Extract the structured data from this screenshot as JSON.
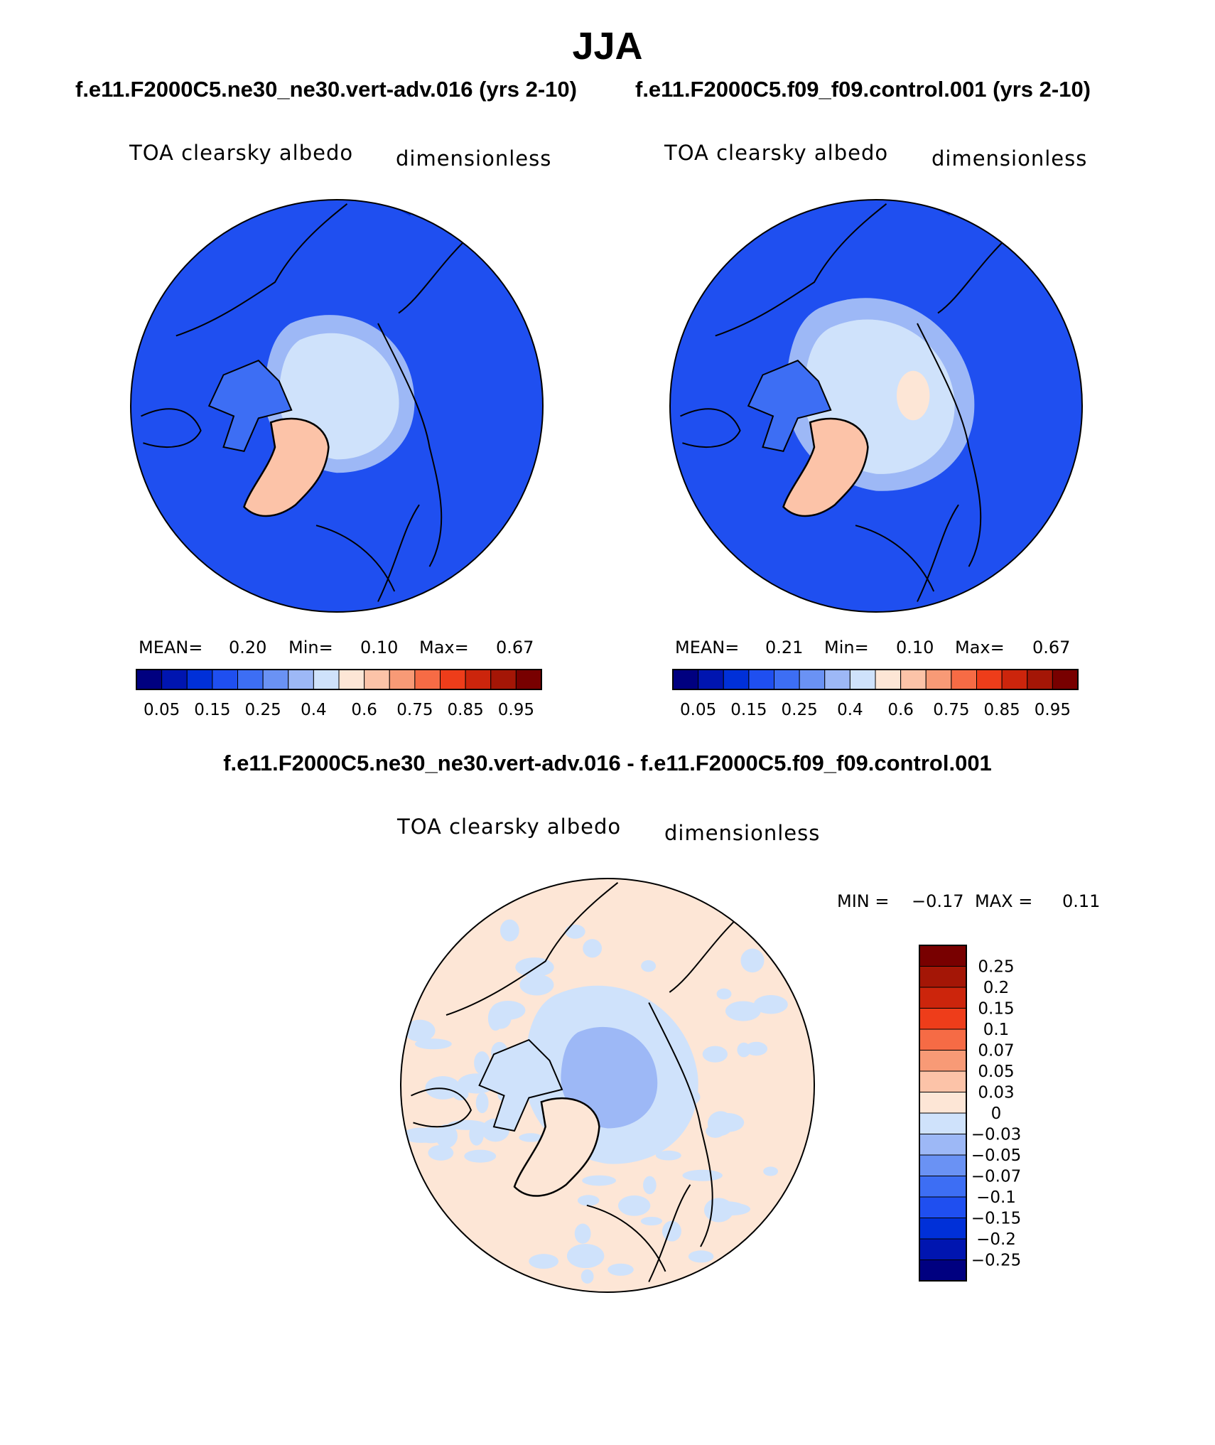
{
  "title": "JJA",
  "colors": {
    "scale": [
      "#000080",
      "#0015b0",
      "#0030d8",
      "#1f4ff0",
      "#3d6ef4",
      "#6a92f4",
      "#9db8f6",
      "#cfe2fb",
      "#fde6d6",
      "#fcc3a8",
      "#f89a76",
      "#f66b45",
      "#ee3d1a",
      "#cc250c",
      "#a41606",
      "#780000"
    ],
    "ocean": "#1f4ff0",
    "ocean_far": "#0030d8",
    "land_mid": "#3d6ef4",
    "ice_light": "#cfe2fb",
    "ice_mid": "#9db8f6",
    "greenland": "#fcc3a8",
    "diff_pos": "#fde6d6",
    "diff_neg": "#cfe2fb",
    "diff_neg2": "#9db8f6"
  },
  "chart_data": [
    {
      "type": "heatmap",
      "projection": "north polar stereographic",
      "case_title": "f.e11.F2000C5.ne30_ne30.vert-adv.016 (yrs 2-10)",
      "variable": "TOA clearsky albedo",
      "units": "dimensionless",
      "stats": {
        "mean_label": "MEAN=",
        "mean": "0.20",
        "min_label": "Min=",
        "min": "0.10",
        "max_label": "Max=",
        "max": "0.67"
      },
      "colorbar": {
        "orientation": "horizontal",
        "levels": [
          "0.05",
          "0.15",
          "0.25",
          "0.4",
          "0.6",
          "0.75",
          "0.85",
          "0.95"
        ]
      }
    },
    {
      "type": "heatmap",
      "projection": "north polar stereographic",
      "case_title": "f.e11.F2000C5.f09_f09.control.001 (yrs 2-10)",
      "variable": "TOA clearsky albedo",
      "units": "dimensionless",
      "stats": {
        "mean_label": "MEAN=",
        "mean": "0.21",
        "min_label": "Min=",
        "min": "0.10",
        "max_label": "Max=",
        "max": "0.67"
      },
      "colorbar": {
        "orientation": "horizontal",
        "levels": [
          "0.05",
          "0.15",
          "0.25",
          "0.4",
          "0.6",
          "0.75",
          "0.85",
          "0.95"
        ]
      }
    },
    {
      "type": "heatmap",
      "projection": "north polar stereographic",
      "case_title": "f.e11.F2000C5.ne30_ne30.vert-adv.016 - f.e11.F2000C5.f09_f09.control.001",
      "variable": "TOA clearsky albedo",
      "units": "dimensionless",
      "stats": {
        "min_label": "MIN =",
        "min": "−0.17",
        "max_label": "MAX =",
        "max": "0.11"
      },
      "colorbar": {
        "orientation": "vertical",
        "levels": [
          "0.25",
          "0.2",
          "0.15",
          "0.1",
          "0.07",
          "0.05",
          "0.03",
          "0",
          "−0.03",
          "−0.05",
          "−0.07",
          "−0.1",
          "−0.15",
          "−0.2",
          "−0.25"
        ]
      }
    }
  ]
}
